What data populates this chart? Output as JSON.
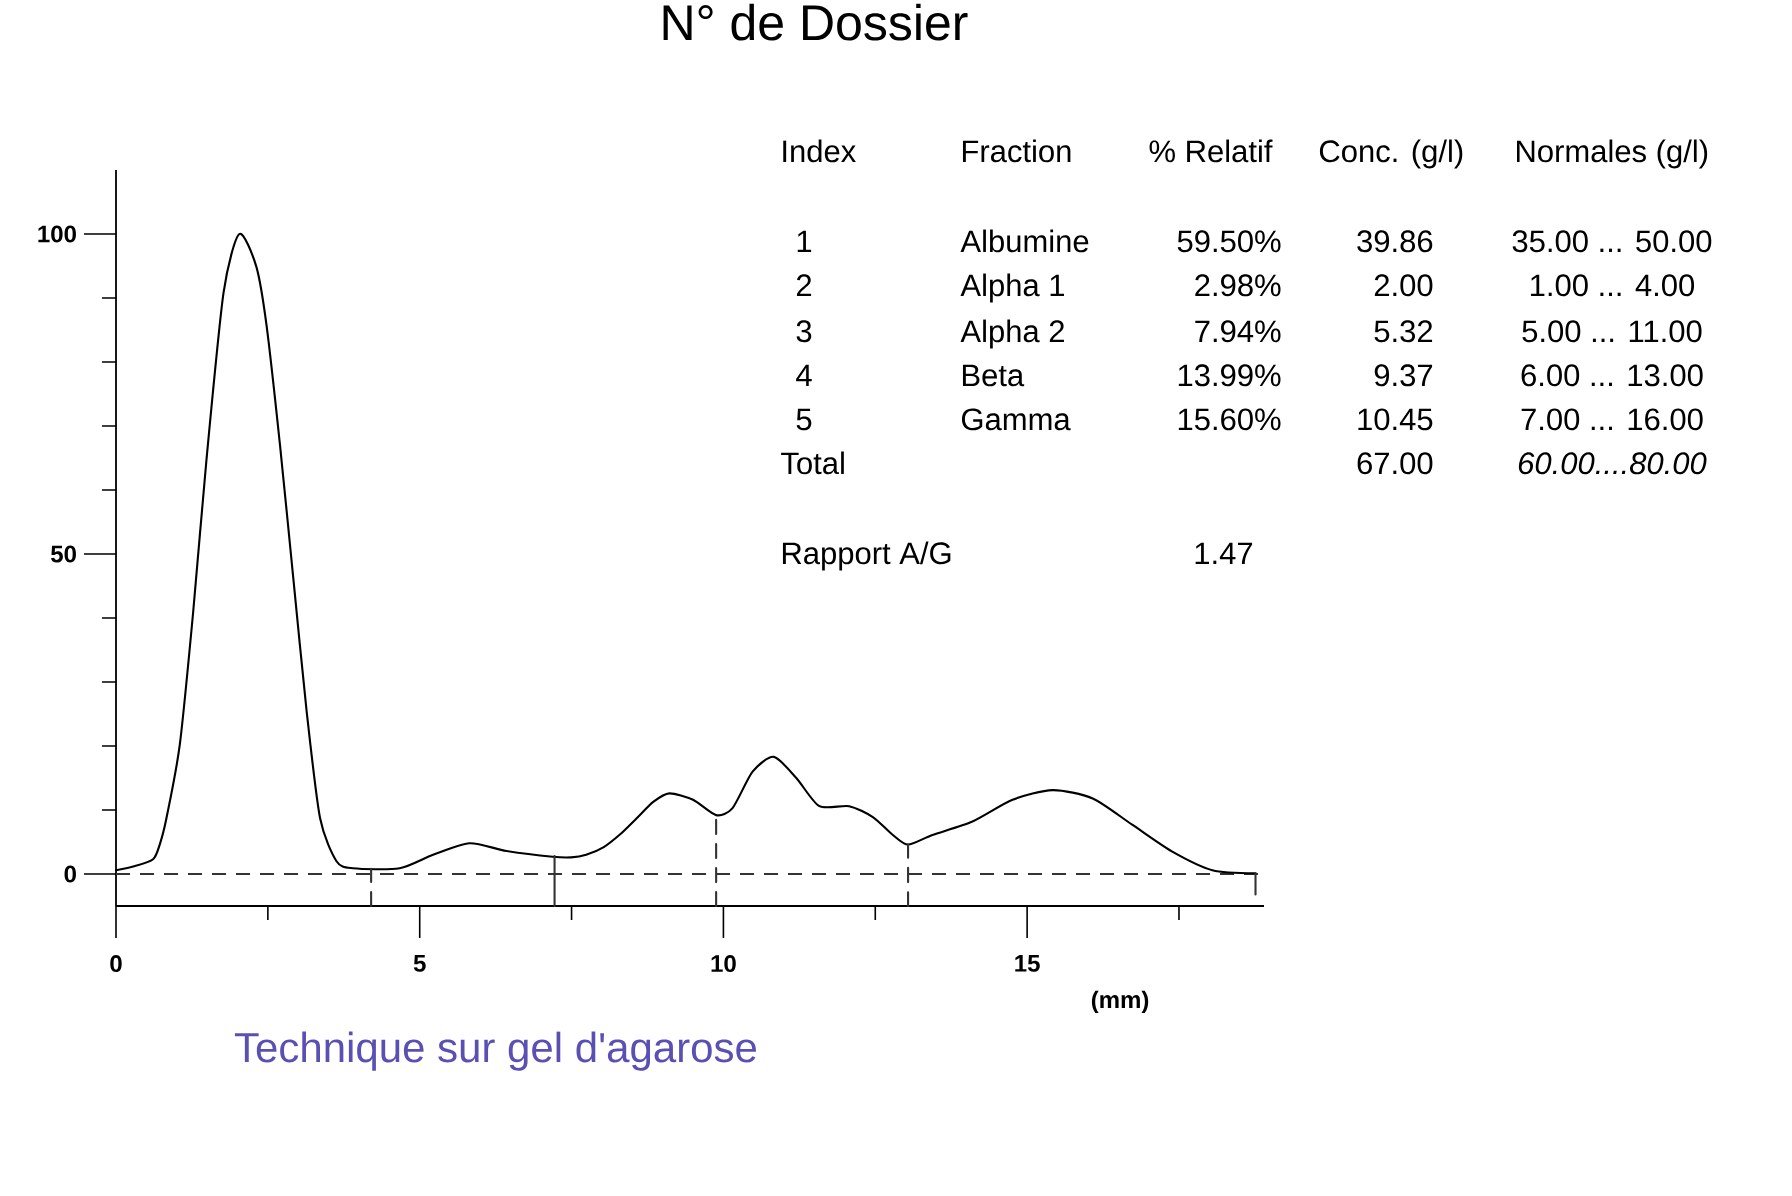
{
  "chart_data": {
    "type": "line",
    "title": "N° de Dossier",
    "xlabel": "(mm)",
    "xlim": [
      0,
      18.9
    ],
    "ylim": [
      -5,
      110
    ],
    "xticks": [
      0,
      {
        "value": 2.5,
        "label": null
      },
      5,
      {
        "value": 7.5,
        "label": null
      },
      10,
      {
        "value": 12.5,
        "label": null
      },
      15,
      {
        "value": 17.5,
        "label": null
      }
    ],
    "yticks": [
      0,
      {
        "value": 10,
        "label": null
      },
      {
        "value": 20,
        "label": null
      },
      {
        "value": 30,
        "label": null
      },
      {
        "value": 40,
        "label": null
      },
      50,
      {
        "value": 60,
        "label": null
      },
      {
        "value": 70,
        "label": null
      },
      {
        "value": 80,
        "label": null
      },
      {
        "value": 90,
        "label": null
      },
      100
    ],
    "series": [
      {
        "color": "#000000",
        "x": [
          0,
          0.3,
          0.61,
          0.72,
          0.83,
          1.05,
          1.27,
          1.49,
          1.77,
          2.03,
          2.31,
          2.48,
          2.7,
          2.92,
          3.14,
          3.36,
          3.63,
          3.9,
          4.67,
          5.22,
          5.82,
          6.43,
          7.19,
          7.49,
          7.74,
          8.03,
          8.3,
          8.56,
          8.85,
          9.11,
          9.5,
          9.88,
          10.15,
          10.48,
          10.83,
          11.2,
          11.58,
          12.07,
          12.46,
          12.79,
          13.04,
          13.44,
          14.1,
          14.76,
          15.42,
          16.08,
          16.73,
          17.39,
          18.05,
          18.76
        ],
        "values": [
          0.6,
          1.2,
          2.3,
          4.6,
          8.7,
          20.2,
          40.9,
          64.8,
          90.8,
          100,
          94.9,
          85.6,
          67.0,
          46.1,
          25.3,
          8.7,
          2.0,
          0.9,
          0.9,
          3.0,
          4.8,
          3.6,
          2.7,
          2.6,
          3.0,
          4.2,
          6.2,
          8.6,
          11.3,
          12.6,
          11.6,
          9.2,
          10.3,
          16.0,
          18.3,
          15.0,
          10.6,
          10.6,
          8.9,
          6.1,
          4.6,
          6.1,
          8.2,
          11.6,
          13.1,
          11.8,
          7.7,
          3.5,
          0.6,
          0.1
        ]
      },
      {
        "color": "#333333",
        "line_style": "dashed",
        "x": [
          4.2,
          4.2
        ],
        "values": [
          -5,
          0.8
        ]
      },
      {
        "color": "#333333",
        "line_style": "solid",
        "x": [
          7.22,
          7.22
        ],
        "values": [
          -5,
          2.8
        ]
      },
      {
        "color": "#333333",
        "line_style": "dashed",
        "x": [
          9.88,
          9.88
        ],
        "values": [
          -5,
          9.2
        ]
      },
      {
        "color": "#333333",
        "line_style": "dashed",
        "x": [
          13.04,
          13.04
        ],
        "values": [
          -5,
          4.6
        ]
      },
      {
        "color": "#333333",
        "line_style": "solid",
        "x": [
          18.76,
          18.76
        ],
        "values": [
          -3.2,
          0.1
        ]
      }
    ],
    "ref_lines": [
      {
        "axis": "y",
        "value": 0,
        "color": "#333333",
        "line_style": "dashed"
      }
    ],
    "annotations": [
      "Technique sur gel d'agarose",
      "Index",
      "Fraction",
      "% Relatif",
      "Conc. (g/l)",
      "Normales (g/l)",
      "1",
      "Albumine",
      "59.50%",
      "39.86",
      "35.00 ... 50.00",
      "2",
      "Alpha 1",
      "2.98%",
      "2.00",
      "1.00 ... 4.00",
      "3",
      "Alpha 2",
      "7.94%",
      "5.32",
      "5.00 ... 11.00",
      "4",
      "Beta",
      "13.99%",
      "9.37",
      "6.00 ... 13.00",
      "5",
      "Gamma",
      "15.60%",
      "10.45",
      "7.00 ... 16.00",
      "Total",
      "67.00",
      "60.00....80.00",
      "Rapport A/G",
      "1.47"
    ]
  }
}
